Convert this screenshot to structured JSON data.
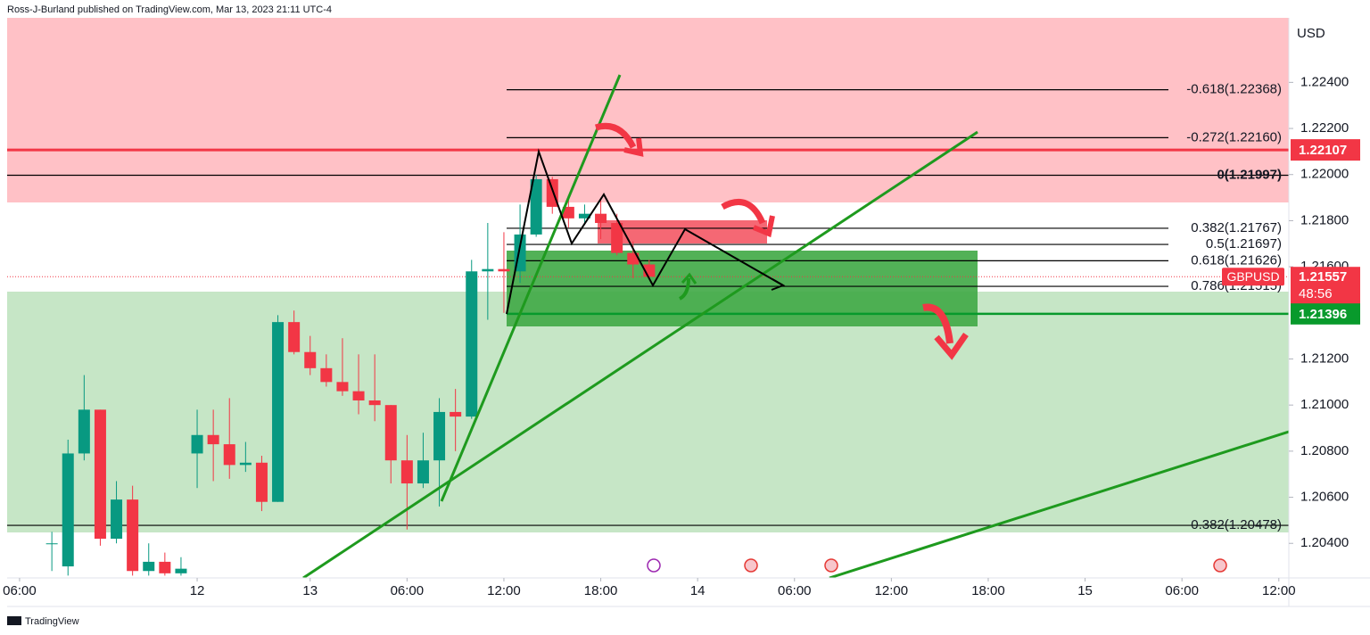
{
  "chart_data": {
    "type": "candlestick",
    "title": "Ross-J-Burland published on TradingView.com, Mar 13, 2023 21:11 UTC-4",
    "currency": "USD",
    "symbol": "GBPUSD",
    "countdown": "48:56",
    "brand": "TradingView",
    "up_color": "#089981",
    "down_color": "#f23645",
    "x": [
      2,
      3,
      4,
      5,
      6,
      7,
      8,
      9,
      10,
      11,
      12,
      13,
      14,
      15,
      16,
      17,
      18,
      19,
      20,
      21,
      22,
      23,
      24,
      25,
      26,
      27,
      28,
      29,
      30,
      31,
      32,
      33,
      34,
      35,
      36,
      37,
      38,
      39
    ],
    "open": [
      1.204,
      1.203,
      1.2079,
      1.2098,
      1.2042,
      1.2059,
      1.2028,
      1.2032,
      1.2027,
      1.2079,
      1.2087,
      1.2083,
      1.2074,
      1.2075,
      1.2058,
      1.2136,
      1.2123,
      1.2116,
      1.211,
      1.2106,
      1.2102,
      1.21,
      1.2076,
      1.2066,
      1.2076,
      1.2097,
      1.2095,
      1.2158,
      1.2159,
      1.2158,
      1.2174,
      1.2198,
      1.2186,
      1.2181,
      1.2183,
      1.2179,
      1.2166,
      1.2161
    ],
    "high": [
      1.2045,
      1.2085,
      1.2113,
      1.2098,
      1.2067,
      1.2065,
      1.204,
      1.2036,
      1.2034,
      1.2098,
      1.2098,
      1.2103,
      1.2084,
      1.2078,
      1.2139,
      1.2141,
      1.213,
      1.2122,
      1.2129,
      1.2122,
      1.2122,
      1.21,
      1.2087,
      1.2088,
      1.2103,
      1.2107,
      1.2163,
      1.2179,
      1.2175,
      1.2187,
      1.22,
      1.2199,
      1.2191,
      1.2187,
      1.2189,
      1.2183,
      1.2171,
      1.2163
    ],
    "low": [
      1.2028,
      1.2026,
      1.2076,
      1.2039,
      1.204,
      1.2026,
      1.2026,
      1.2026,
      1.2026,
      1.2064,
      1.2067,
      1.2068,
      1.2071,
      1.2054,
      1.2058,
      1.2122,
      1.2113,
      1.2108,
      1.2104,
      1.2096,
      1.2093,
      1.2066,
      1.2046,
      1.2064,
      1.2056,
      1.208,
      1.2094,
      1.2137,
      1.214,
      1.2153,
      1.2173,
      1.2183,
      1.2177,
      1.2179,
      1.2172,
      1.2165,
      1.2155,
      1.2155
    ],
    "close": [
      1.204,
      1.2079,
      1.2098,
      1.2042,
      1.2059,
      1.2028,
      1.2032,
      1.2027,
      1.2029,
      1.2087,
      1.2083,
      1.2074,
      1.2075,
      1.2058,
      1.2136,
      1.2123,
      1.2116,
      1.211,
      1.2106,
      1.2102,
      1.21,
      1.2076,
      1.2066,
      1.2076,
      1.2097,
      1.2095,
      1.2158,
      1.2159,
      1.2158,
      1.2174,
      1.2198,
      1.2186,
      1.2181,
      1.2183,
      1.2179,
      1.2166,
      1.2161,
      1.21557
    ],
    "xlim": [
      -0.77,
      78.62
    ],
    "xticks": [
      {
        "value": 0,
        "label": "06:00"
      },
      {
        "value": 11,
        "label": "12"
      },
      {
        "value": 18,
        "label": "13"
      },
      {
        "value": 24,
        "label": "06:00"
      },
      {
        "value": 30,
        "label": "12:00"
      },
      {
        "value": 36,
        "label": "18:00"
      },
      {
        "value": 42,
        "label": "14"
      },
      {
        "value": 48,
        "label": "06:00"
      },
      {
        "value": 54,
        "label": "12:00"
      },
      {
        "value": 60,
        "label": "18:00"
      },
      {
        "value": 66,
        "label": "15"
      },
      {
        "value": 72,
        "label": "06:00"
      },
      {
        "value": 78,
        "label": "12:00"
      }
    ],
    "ylim": [
      1.2025,
      1.2268
    ],
    "yticks": [
      {
        "value": 1.224,
        "label": "1.22400"
      },
      {
        "value": 1.222,
        "label": "1.22200"
      },
      {
        "value": 1.22,
        "label": "1.22000"
      },
      {
        "value": 1.218,
        "label": "1.21800"
      },
      {
        "value": 1.216,
        "label": "1.21600"
      },
      {
        "value": 1.212,
        "label": "1.21200"
      },
      {
        "value": 1.21,
        "label": "1.21000"
      },
      {
        "value": 1.208,
        "label": "1.20800"
      },
      {
        "value": 1.206,
        "label": "1.20600"
      },
      {
        "value": 1.204,
        "label": "1.20400"
      }
    ],
    "fib_levels": [
      {
        "value": 1.22368,
        "label": "-0.618(1.22368)",
        "extend": false
      },
      {
        "value": 1.2216,
        "label": "-0.272(1.22160)",
        "extend": false
      },
      {
        "value": 1.21997,
        "label": "0(1.21997)",
        "extend": true
      },
      {
        "value": 1.21767,
        "label": "0.382(1.21767)",
        "extend": false
      },
      {
        "value": 1.21697,
        "label": "0.5(1.21697)",
        "extend": false
      },
      {
        "value": 1.21626,
        "label": "0.618(1.21626)",
        "extend": false
      },
      {
        "value": 1.21515,
        "label": "0.786(1.21515)",
        "extend": false
      },
      {
        "value": 1.20478,
        "label": "0.382(1.20478)",
        "extend": true
      }
    ],
    "price_lines": [
      {
        "value": 1.22107,
        "color": "#f23645"
      },
      {
        "value": 1.21396,
        "color": "#089a2c"
      }
    ],
    "last_price": 1.21557
  }
}
